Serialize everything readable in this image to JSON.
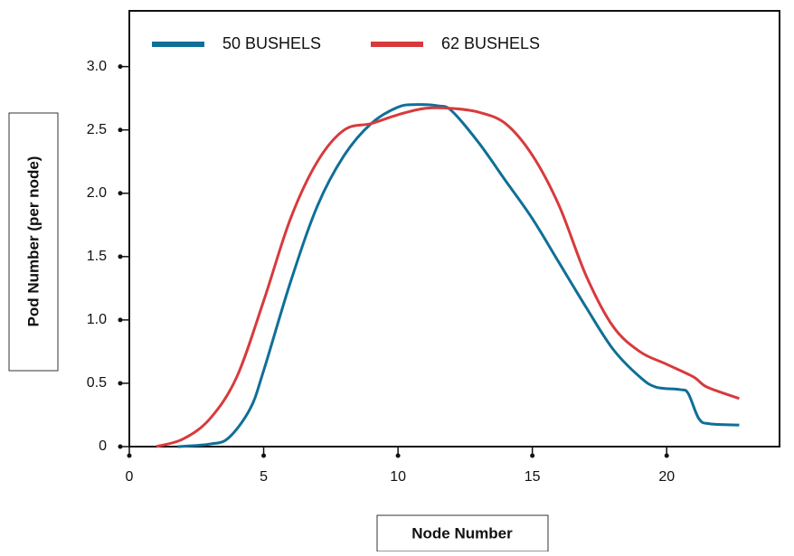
{
  "chart_data": {
    "type": "line",
    "xlabel": "Node Number",
    "ylabel": "Pod Number (per node)",
    "xlim": [
      0,
      24.2
    ],
    "xticks": [
      0,
      5,
      10,
      15,
      20
    ],
    "ylim": [
      0,
      3.44
    ],
    "yticks": [
      0,
      0.5,
      {
        "value": 1,
        "label": "1.0"
      },
      1.5,
      {
        "value": 2,
        "label": "2.0"
      },
      2.5,
      {
        "value": 3,
        "label": "3.0"
      }
    ],
    "legend": "top-left",
    "series": [
      {
        "name": "50 BUSHELS",
        "color": "#0f6f97",
        "x": [
          1.8,
          3,
          3.7,
          4.5,
          5,
          6,
          7,
          8,
          9,
          10,
          10.7,
          11.5,
          12,
          13,
          14,
          15,
          16,
          17,
          18,
          19,
          19.6,
          20.5,
          20.8,
          21.2,
          21.6,
          22.7
        ],
        "values": [
          0,
          0.02,
          0.07,
          0.3,
          0.6,
          1.3,
          1.9,
          2.3,
          2.55,
          2.68,
          2.7,
          2.69,
          2.65,
          2.4,
          2.1,
          1.8,
          1.45,
          1.1,
          0.77,
          0.55,
          0.47,
          0.45,
          0.42,
          0.22,
          0.18,
          0.17
        ]
      },
      {
        "name": "62 BUSHELS",
        "color": "#d83a3c",
        "x": [
          1,
          2,
          3,
          4,
          5,
          6,
          7,
          8,
          9,
          10,
          11,
          12,
          13,
          14,
          15,
          16,
          17,
          18,
          19,
          20,
          21,
          21.5,
          22.7
        ],
        "values": [
          0,
          0.06,
          0.22,
          0.55,
          1.15,
          1.8,
          2.25,
          2.5,
          2.55,
          2.62,
          2.67,
          2.67,
          2.64,
          2.55,
          2.3,
          1.9,
          1.35,
          0.95,
          0.75,
          0.65,
          0.55,
          0.47,
          0.38
        ]
      }
    ]
  }
}
